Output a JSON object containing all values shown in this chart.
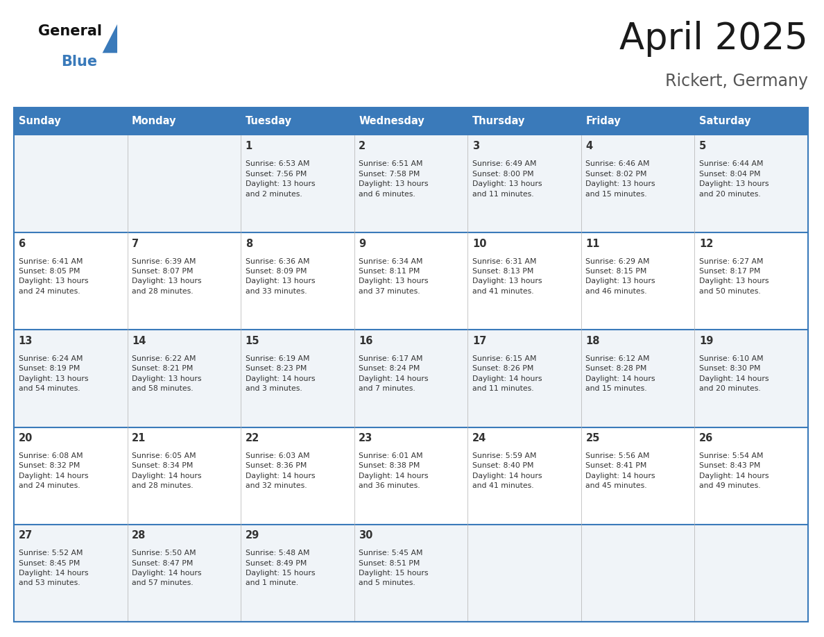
{
  "title": "April 2025",
  "subtitle": "Rickert, Germany",
  "header_bg_color": "#3a7aba",
  "header_text_color": "#ffffff",
  "cell_bg_color_odd": "#f0f4f8",
  "cell_bg_color_even": "#ffffff",
  "row_line_color": "#3a7aba",
  "col_line_color": "#3a7aba",
  "text_color": "#333333",
  "day_headers": [
    "Sunday",
    "Monday",
    "Tuesday",
    "Wednesday",
    "Thursday",
    "Friday",
    "Saturday"
  ],
  "week_rows": [
    [
      {
        "day": "",
        "info": ""
      },
      {
        "day": "",
        "info": ""
      },
      {
        "day": "1",
        "info": "Sunrise: 6:53 AM\nSunset: 7:56 PM\nDaylight: 13 hours\nand 2 minutes."
      },
      {
        "day": "2",
        "info": "Sunrise: 6:51 AM\nSunset: 7:58 PM\nDaylight: 13 hours\nand 6 minutes."
      },
      {
        "day": "3",
        "info": "Sunrise: 6:49 AM\nSunset: 8:00 PM\nDaylight: 13 hours\nand 11 minutes."
      },
      {
        "day": "4",
        "info": "Sunrise: 6:46 AM\nSunset: 8:02 PM\nDaylight: 13 hours\nand 15 minutes."
      },
      {
        "day": "5",
        "info": "Sunrise: 6:44 AM\nSunset: 8:04 PM\nDaylight: 13 hours\nand 20 minutes."
      }
    ],
    [
      {
        "day": "6",
        "info": "Sunrise: 6:41 AM\nSunset: 8:05 PM\nDaylight: 13 hours\nand 24 minutes."
      },
      {
        "day": "7",
        "info": "Sunrise: 6:39 AM\nSunset: 8:07 PM\nDaylight: 13 hours\nand 28 minutes."
      },
      {
        "day": "8",
        "info": "Sunrise: 6:36 AM\nSunset: 8:09 PM\nDaylight: 13 hours\nand 33 minutes."
      },
      {
        "day": "9",
        "info": "Sunrise: 6:34 AM\nSunset: 8:11 PM\nDaylight: 13 hours\nand 37 minutes."
      },
      {
        "day": "10",
        "info": "Sunrise: 6:31 AM\nSunset: 8:13 PM\nDaylight: 13 hours\nand 41 minutes."
      },
      {
        "day": "11",
        "info": "Sunrise: 6:29 AM\nSunset: 8:15 PM\nDaylight: 13 hours\nand 46 minutes."
      },
      {
        "day": "12",
        "info": "Sunrise: 6:27 AM\nSunset: 8:17 PM\nDaylight: 13 hours\nand 50 minutes."
      }
    ],
    [
      {
        "day": "13",
        "info": "Sunrise: 6:24 AM\nSunset: 8:19 PM\nDaylight: 13 hours\nand 54 minutes."
      },
      {
        "day": "14",
        "info": "Sunrise: 6:22 AM\nSunset: 8:21 PM\nDaylight: 13 hours\nand 58 minutes."
      },
      {
        "day": "15",
        "info": "Sunrise: 6:19 AM\nSunset: 8:23 PM\nDaylight: 14 hours\nand 3 minutes."
      },
      {
        "day": "16",
        "info": "Sunrise: 6:17 AM\nSunset: 8:24 PM\nDaylight: 14 hours\nand 7 minutes."
      },
      {
        "day": "17",
        "info": "Sunrise: 6:15 AM\nSunset: 8:26 PM\nDaylight: 14 hours\nand 11 minutes."
      },
      {
        "day": "18",
        "info": "Sunrise: 6:12 AM\nSunset: 8:28 PM\nDaylight: 14 hours\nand 15 minutes."
      },
      {
        "day": "19",
        "info": "Sunrise: 6:10 AM\nSunset: 8:30 PM\nDaylight: 14 hours\nand 20 minutes."
      }
    ],
    [
      {
        "day": "20",
        "info": "Sunrise: 6:08 AM\nSunset: 8:32 PM\nDaylight: 14 hours\nand 24 minutes."
      },
      {
        "day": "21",
        "info": "Sunrise: 6:05 AM\nSunset: 8:34 PM\nDaylight: 14 hours\nand 28 minutes."
      },
      {
        "day": "22",
        "info": "Sunrise: 6:03 AM\nSunset: 8:36 PM\nDaylight: 14 hours\nand 32 minutes."
      },
      {
        "day": "23",
        "info": "Sunrise: 6:01 AM\nSunset: 8:38 PM\nDaylight: 14 hours\nand 36 minutes."
      },
      {
        "day": "24",
        "info": "Sunrise: 5:59 AM\nSunset: 8:40 PM\nDaylight: 14 hours\nand 41 minutes."
      },
      {
        "day": "25",
        "info": "Sunrise: 5:56 AM\nSunset: 8:41 PM\nDaylight: 14 hours\nand 45 minutes."
      },
      {
        "day": "26",
        "info": "Sunrise: 5:54 AM\nSunset: 8:43 PM\nDaylight: 14 hours\nand 49 minutes."
      }
    ],
    [
      {
        "day": "27",
        "info": "Sunrise: 5:52 AM\nSunset: 8:45 PM\nDaylight: 14 hours\nand 53 minutes."
      },
      {
        "day": "28",
        "info": "Sunrise: 5:50 AM\nSunset: 8:47 PM\nDaylight: 14 hours\nand 57 minutes."
      },
      {
        "day": "29",
        "info": "Sunrise: 5:48 AM\nSunset: 8:49 PM\nDaylight: 15 hours\nand 1 minute."
      },
      {
        "day": "30",
        "info": "Sunrise: 5:45 AM\nSunset: 8:51 PM\nDaylight: 15 hours\nand 5 minutes."
      },
      {
        "day": "",
        "info": ""
      },
      {
        "day": "",
        "info": ""
      },
      {
        "day": "",
        "info": ""
      }
    ]
  ],
  "logo_general_color": "#111111",
  "logo_blue_color": "#3a7aba",
  "logo_triangle_color": "#3a7aba"
}
